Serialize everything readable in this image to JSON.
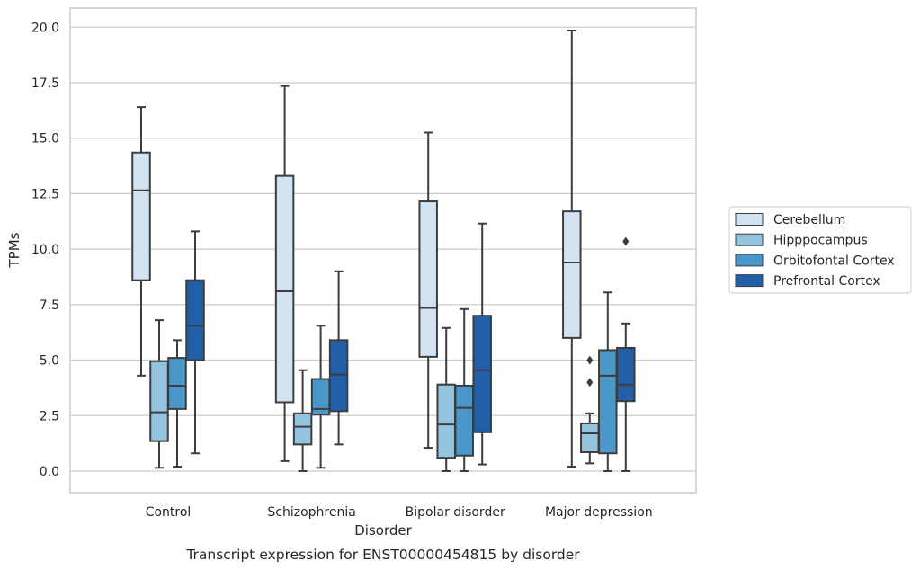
{
  "chart_data": {
    "type": "box",
    "title": "Transcript expression for ENST00000454815 by disorder",
    "xlabel": "Disorder",
    "ylabel": "TPMs",
    "ylim": [
      -1,
      20.8
    ],
    "yticks": [
      "0.0",
      "2.5",
      "5.0",
      "7.5",
      "10.0",
      "12.5",
      "15.0",
      "17.5",
      "20.0"
    ],
    "grid": "horizontal",
    "legend_position": "right",
    "categories": [
      "Control",
      "Schizophrenia",
      "Bipolar disorder",
      "Major depression"
    ],
    "series": [
      {
        "name": "Cerebellum",
        "color": "#d4e3f1",
        "boxes": [
          {
            "whislo": 4.3,
            "q1": 8.6,
            "med": 12.65,
            "q3": 14.35,
            "whishi": 16.4,
            "fliers": []
          },
          {
            "whislo": 0.45,
            "q1": 3.1,
            "med": 8.1,
            "q3": 13.3,
            "whishi": 17.35,
            "fliers": []
          },
          {
            "whislo": 1.05,
            "q1": 5.15,
            "med": 7.35,
            "q3": 12.15,
            "whishi": 15.25,
            "fliers": []
          },
          {
            "whislo": 0.2,
            "q1": 6.0,
            "med": 9.4,
            "q3": 11.7,
            "whishi": 19.85,
            "fliers": []
          }
        ]
      },
      {
        "name": "Hipppocampus",
        "color": "#94c4df",
        "boxes": [
          {
            "whislo": 0.15,
            "q1": 1.35,
            "med": 2.65,
            "q3": 4.95,
            "whishi": 6.8,
            "fliers": []
          },
          {
            "whislo": 0.0,
            "q1": 1.2,
            "med": 2.0,
            "q3": 2.6,
            "whishi": 4.55,
            "fliers": []
          },
          {
            "whislo": 0.0,
            "q1": 0.6,
            "med": 2.1,
            "q3": 3.9,
            "whishi": 6.45,
            "fliers": []
          },
          {
            "whislo": 0.35,
            "q1": 0.85,
            "med": 1.7,
            "q3": 2.15,
            "whishi": 2.6,
            "fliers": [
              4.0,
              5.0
            ]
          }
        ]
      },
      {
        "name": "Orbitofontal Cortex",
        "color": "#4a98c9",
        "boxes": [
          {
            "whislo": 0.2,
            "q1": 2.8,
            "med": 3.85,
            "q3": 5.1,
            "whishi": 5.9,
            "fliers": []
          },
          {
            "whislo": 0.15,
            "q1": 2.55,
            "med": 2.8,
            "q3": 4.15,
            "whishi": 6.55,
            "fliers": []
          },
          {
            "whislo": 0.0,
            "q1": 0.7,
            "med": 2.85,
            "q3": 3.85,
            "whishi": 7.3,
            "fliers": []
          },
          {
            "whislo": 0.0,
            "q1": 0.8,
            "med": 4.3,
            "q3": 5.45,
            "whishi": 8.05,
            "fliers": []
          }
        ]
      },
      {
        "name": "Prefrontal Cortex",
        "color": "#2160a8",
        "boxes": [
          {
            "whislo": 0.8,
            "q1": 5.0,
            "med": 6.55,
            "q3": 8.6,
            "whishi": 10.8,
            "fliers": []
          },
          {
            "whislo": 1.2,
            "q1": 2.7,
            "med": 4.35,
            "q3": 5.9,
            "whishi": 9.0,
            "fliers": []
          },
          {
            "whislo": 0.3,
            "q1": 1.75,
            "med": 4.55,
            "q3": 7.0,
            "whishi": 11.15,
            "fliers": []
          },
          {
            "whislo": 0.0,
            "q1": 3.15,
            "med": 3.9,
            "q3": 5.55,
            "whishi": 6.65,
            "fliers": [
              10.35
            ]
          }
        ]
      }
    ]
  }
}
